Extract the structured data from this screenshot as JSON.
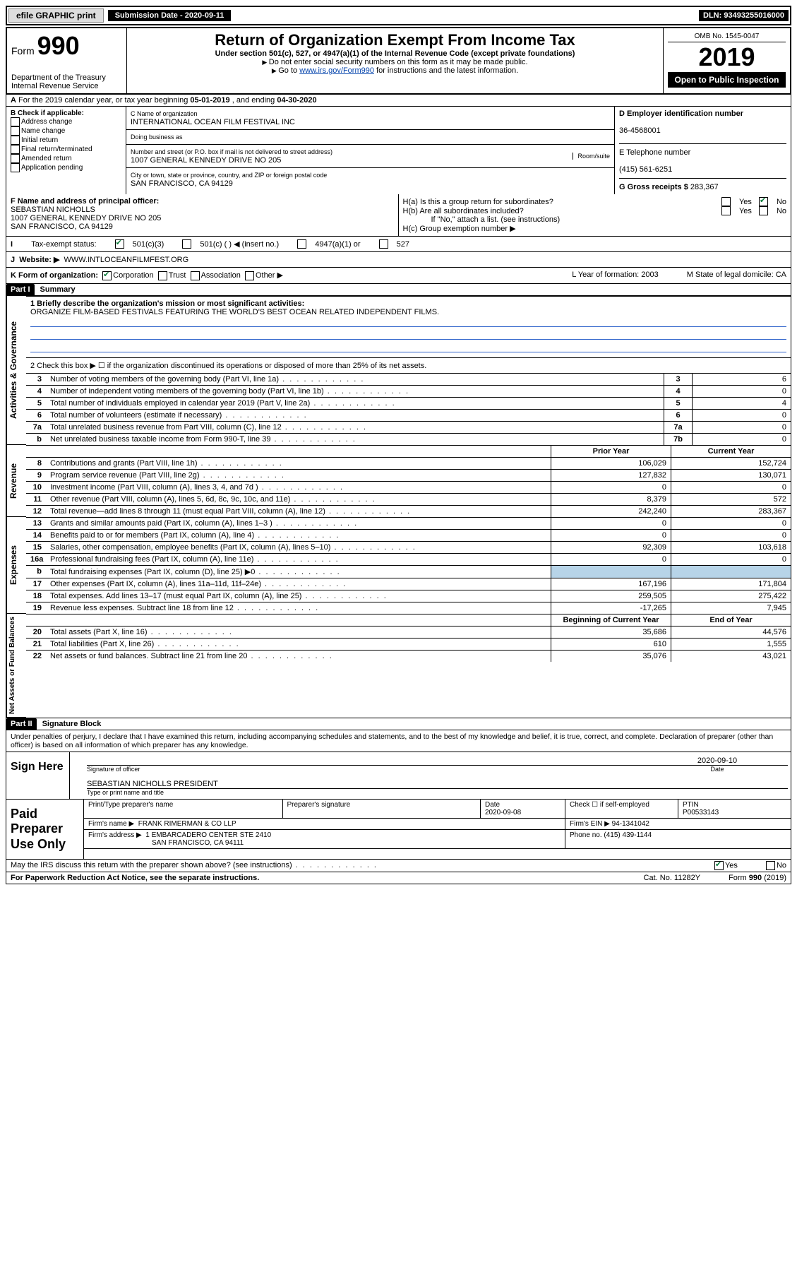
{
  "meta": {
    "efile": "efile GRAPHIC print",
    "submission_label": "Submission Date - 2020-09-11",
    "dln": "DLN: 93493255016000",
    "omb": "OMB No. 1545-0047",
    "form": "Form",
    "form_no": "990",
    "title": "Return of Organization Exempt From Income Tax",
    "subtitle": "Under section 501(c), 527, or 4947(a)(1) of the Internal Revenue Code (except private foundations)",
    "note1": "Do not enter social security numbers on this form as it may be made public.",
    "note2_pre": "Go to ",
    "note2_link": "www.irs.gov/Form990",
    "note2_post": " for instructions and the latest information.",
    "year": "2019",
    "open": "Open to Public Inspection",
    "dept": "Department of the Treasury\nInternal Revenue Service"
  },
  "sectionA": {
    "text_pre": "For the 2019 calendar year, or tax year beginning ",
    "begin": "05-01-2019",
    "mid": " , and ending ",
    "end": "04-30-2020"
  },
  "boxB": {
    "label": "B Check if applicable:",
    "items": [
      "Address change",
      "Name change",
      "Initial return",
      "Final return/terminated",
      "Amended return",
      "Application pending"
    ]
  },
  "boxC": {
    "label": "C Name of organization",
    "name": "INTERNATIONAL OCEAN FILM FESTIVAL INC",
    "dba_label": "Doing business as",
    "addr_label": "Number and street (or P.O. box if mail is not delivered to street address)",
    "room_label": "Room/suite",
    "addr": "1007 GENERAL KENNEDY DRIVE NO 205",
    "city_label": "City or town, state or province, country, and ZIP or foreign postal code",
    "city": "SAN FRANCISCO, CA  94129"
  },
  "boxD": {
    "label": "D Employer identification number",
    "val": "36-4568001"
  },
  "boxE": {
    "label": "E Telephone number",
    "val": "(415) 561-6251"
  },
  "boxG": {
    "label": "G Gross receipts $",
    "val": "283,367"
  },
  "boxF": {
    "label": "F Name and address of principal officer:",
    "name": "SEBASTIAN NICHOLLS",
    "addr1": "1007 GENERAL KENNEDY DRIVE NO 205",
    "addr2": "SAN FRANCISCO, CA  94129"
  },
  "boxH": {
    "a": "H(a)  Is this a group return for subordinates?",
    "b": "H(b)  Are all subordinates included?",
    "bnote": "If \"No,\" attach a list. (see instructions)",
    "c": "H(c)  Group exemption number ▶",
    "yes": "Yes",
    "no": "No"
  },
  "rowI": {
    "label": "Tax-exempt status:",
    "opts": [
      "501(c)(3)",
      "501(c) (  ) ◀ (insert no.)",
      "4947(a)(1) or",
      "527"
    ]
  },
  "rowJ": {
    "label": "Website: ▶",
    "val": "WWW.INTLOCEANFILMFEST.ORG"
  },
  "rowK": {
    "label": "K Form of organization:",
    "opts": [
      "Corporation",
      "Trust",
      "Association",
      "Other ▶"
    ],
    "L": "L Year of formation: 2003",
    "M": "M State of legal domicile: CA"
  },
  "part1": {
    "hdr": "Part I",
    "title": "Summary"
  },
  "governance": {
    "label": "Activities & Governance",
    "line1": "1  Briefly describe the organization's mission or most significant activities:",
    "mission": "ORGANIZE FILM-BASED FESTIVALS FEATURING THE WORLD'S BEST OCEAN RELATED INDEPENDENT FILMS.",
    "line2": "2  Check this box ▶ ☐  if the organization discontinued its operations or disposed of more than 25% of its net assets.",
    "rows": [
      {
        "n": "3",
        "d": "Number of voting members of the governing body (Part VI, line 1a)",
        "k": "3",
        "v": "6"
      },
      {
        "n": "4",
        "d": "Number of independent voting members of the governing body (Part VI, line 1b)",
        "k": "4",
        "v": "0"
      },
      {
        "n": "5",
        "d": "Total number of individuals employed in calendar year 2019 (Part V, line 2a)",
        "k": "5",
        "v": "4"
      },
      {
        "n": "6",
        "d": "Total number of volunteers (estimate if necessary)",
        "k": "6",
        "v": "0"
      },
      {
        "n": "7a",
        "d": "Total unrelated business revenue from Part VIII, column (C), line 12",
        "k": "7a",
        "v": "0"
      },
      {
        "n": "b",
        "d": "Net unrelated business taxable income from Form 990-T, line 39",
        "k": "7b",
        "v": "0"
      }
    ]
  },
  "revenue": {
    "label": "Revenue",
    "hdr_prior": "Prior Year",
    "hdr_curr": "Current Year",
    "rows": [
      {
        "n": "8",
        "d": "Contributions and grants (Part VIII, line 1h)",
        "p": "106,029",
        "c": "152,724"
      },
      {
        "n": "9",
        "d": "Program service revenue (Part VIII, line 2g)",
        "p": "127,832",
        "c": "130,071"
      },
      {
        "n": "10",
        "d": "Investment income (Part VIII, column (A), lines 3, 4, and 7d )",
        "p": "0",
        "c": "0"
      },
      {
        "n": "11",
        "d": "Other revenue (Part VIII, column (A), lines 5, 6d, 8c, 9c, 10c, and 11e)",
        "p": "8,379",
        "c": "572"
      },
      {
        "n": "12",
        "d": "Total revenue—add lines 8 through 11 (must equal Part VIII, column (A), line 12)",
        "p": "242,240",
        "c": "283,367"
      }
    ]
  },
  "expenses": {
    "label": "Expenses",
    "rows": [
      {
        "n": "13",
        "d": "Grants and similar amounts paid (Part IX, column (A), lines 1–3 )",
        "p": "0",
        "c": "0"
      },
      {
        "n": "14",
        "d": "Benefits paid to or for members (Part IX, column (A), line 4)",
        "p": "0",
        "c": "0"
      },
      {
        "n": "15",
        "d": "Salaries, other compensation, employee benefits (Part IX, column (A), lines 5–10)",
        "p": "92,309",
        "c": "103,618"
      },
      {
        "n": "16a",
        "d": "Professional fundraising fees (Part IX, column (A), line 11e)",
        "p": "0",
        "c": "0"
      },
      {
        "n": "b",
        "d": "Total fundraising expenses (Part IX, column (D), line 25) ▶0",
        "p": "",
        "c": "",
        "shaded": true
      },
      {
        "n": "17",
        "d": "Other expenses (Part IX, column (A), lines 11a–11d, 11f–24e)",
        "p": "167,196",
        "c": "171,804"
      },
      {
        "n": "18",
        "d": "Total expenses. Add lines 13–17 (must equal Part IX, column (A), line 25)",
        "p": "259,505",
        "c": "275,422"
      },
      {
        "n": "19",
        "d": "Revenue less expenses. Subtract line 18 from line 12",
        "p": "-17,265",
        "c": "7,945"
      }
    ]
  },
  "netassets": {
    "label": "Net Assets or Fund Balances",
    "hdr_prior": "Beginning of Current Year",
    "hdr_curr": "End of Year",
    "rows": [
      {
        "n": "20",
        "d": "Total assets (Part X, line 16)",
        "p": "35,686",
        "c": "44,576"
      },
      {
        "n": "21",
        "d": "Total liabilities (Part X, line 26)",
        "p": "610",
        "c": "1,555"
      },
      {
        "n": "22",
        "d": "Net assets or fund balances. Subtract line 21 from line 20",
        "p": "35,076",
        "c": "43,021"
      }
    ]
  },
  "part2": {
    "hdr": "Part II",
    "title": "Signature Block"
  },
  "declaration": "Under penalties of perjury, I declare that I have examined this return, including accompanying schedules and statements, and to the best of my knowledge and belief, it is true, correct, and complete. Declaration of preparer (other than officer) is based on all information of which preparer has any knowledge.",
  "sign": {
    "label": "Sign Here",
    "sig_label": "Signature of officer",
    "date": "2020-09-10",
    "date_label": "Date",
    "name": "SEBASTIAN NICHOLLS PRESIDENT",
    "name_label": "Type or print name and title"
  },
  "paid": {
    "label": "Paid Preparer Use Only",
    "h1": "Print/Type preparer's name",
    "h2": "Preparer's signature",
    "h3": "Date",
    "date": "2020-09-08",
    "h4": "Check ☐ if self-employed",
    "h5": "PTIN",
    "ptin": "P00533143",
    "firm_label": "Firm's name    ▶",
    "firm": "FRANK RIMERMAN & CO LLP",
    "ein_label": "Firm's EIN ▶",
    "ein": "94-1341042",
    "addr_label": "Firm's address ▶",
    "addr1": "1 EMBARCADERO CENTER STE 2410",
    "addr2": "SAN FRANCISCO, CA  94111",
    "phone_label": "Phone no.",
    "phone": "(415) 439-1144"
  },
  "discuss": {
    "q": "May the IRS discuss this return with the preparer shown above? (see instructions)",
    "yes": "Yes",
    "no": "No"
  },
  "footer": {
    "pra": "For Paperwork Reduction Act Notice, see the separate instructions.",
    "cat": "Cat. No. 11282Y",
    "form": "Form 990 (2019)"
  }
}
